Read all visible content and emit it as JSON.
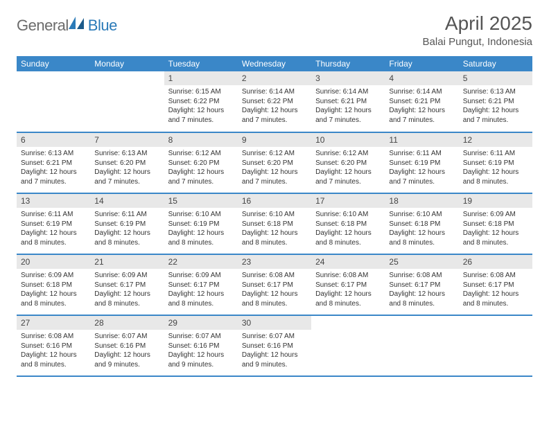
{
  "brand": {
    "text1": "General",
    "text2": "Blue"
  },
  "title": "April 2025",
  "location": "Balai Pungut, Indonesia",
  "colors": {
    "header_bg": "#3a87c8",
    "header_text": "#ffffff",
    "daynum_bg": "#e8e8e8",
    "row_border": "#3a87c8",
    "logo_gray": "#6b6b6b",
    "logo_blue": "#2a7ab8"
  },
  "weekdays": [
    "Sunday",
    "Monday",
    "Tuesday",
    "Wednesday",
    "Thursday",
    "Friday",
    "Saturday"
  ],
  "weeks": [
    [
      {
        "empty": true
      },
      {
        "empty": true
      },
      {
        "n": "1",
        "sr": "6:15 AM",
        "ss": "6:22 PM",
        "dl": "12 hours and 7 minutes."
      },
      {
        "n": "2",
        "sr": "6:14 AM",
        "ss": "6:22 PM",
        "dl": "12 hours and 7 minutes."
      },
      {
        "n": "3",
        "sr": "6:14 AM",
        "ss": "6:21 PM",
        "dl": "12 hours and 7 minutes."
      },
      {
        "n": "4",
        "sr": "6:14 AM",
        "ss": "6:21 PM",
        "dl": "12 hours and 7 minutes."
      },
      {
        "n": "5",
        "sr": "6:13 AM",
        "ss": "6:21 PM",
        "dl": "12 hours and 7 minutes."
      }
    ],
    [
      {
        "n": "6",
        "sr": "6:13 AM",
        "ss": "6:21 PM",
        "dl": "12 hours and 7 minutes."
      },
      {
        "n": "7",
        "sr": "6:13 AM",
        "ss": "6:20 PM",
        "dl": "12 hours and 7 minutes."
      },
      {
        "n": "8",
        "sr": "6:12 AM",
        "ss": "6:20 PM",
        "dl": "12 hours and 7 minutes."
      },
      {
        "n": "9",
        "sr": "6:12 AM",
        "ss": "6:20 PM",
        "dl": "12 hours and 7 minutes."
      },
      {
        "n": "10",
        "sr": "6:12 AM",
        "ss": "6:20 PM",
        "dl": "12 hours and 7 minutes."
      },
      {
        "n": "11",
        "sr": "6:11 AM",
        "ss": "6:19 PM",
        "dl": "12 hours and 7 minutes."
      },
      {
        "n": "12",
        "sr": "6:11 AM",
        "ss": "6:19 PM",
        "dl": "12 hours and 8 minutes."
      }
    ],
    [
      {
        "n": "13",
        "sr": "6:11 AM",
        "ss": "6:19 PM",
        "dl": "12 hours and 8 minutes."
      },
      {
        "n": "14",
        "sr": "6:11 AM",
        "ss": "6:19 PM",
        "dl": "12 hours and 8 minutes."
      },
      {
        "n": "15",
        "sr": "6:10 AM",
        "ss": "6:19 PM",
        "dl": "12 hours and 8 minutes."
      },
      {
        "n": "16",
        "sr": "6:10 AM",
        "ss": "6:18 PM",
        "dl": "12 hours and 8 minutes."
      },
      {
        "n": "17",
        "sr": "6:10 AM",
        "ss": "6:18 PM",
        "dl": "12 hours and 8 minutes."
      },
      {
        "n": "18",
        "sr": "6:10 AM",
        "ss": "6:18 PM",
        "dl": "12 hours and 8 minutes."
      },
      {
        "n": "19",
        "sr": "6:09 AM",
        "ss": "6:18 PM",
        "dl": "12 hours and 8 minutes."
      }
    ],
    [
      {
        "n": "20",
        "sr": "6:09 AM",
        "ss": "6:18 PM",
        "dl": "12 hours and 8 minutes."
      },
      {
        "n": "21",
        "sr": "6:09 AM",
        "ss": "6:17 PM",
        "dl": "12 hours and 8 minutes."
      },
      {
        "n": "22",
        "sr": "6:09 AM",
        "ss": "6:17 PM",
        "dl": "12 hours and 8 minutes."
      },
      {
        "n": "23",
        "sr": "6:08 AM",
        "ss": "6:17 PM",
        "dl": "12 hours and 8 minutes."
      },
      {
        "n": "24",
        "sr": "6:08 AM",
        "ss": "6:17 PM",
        "dl": "12 hours and 8 minutes."
      },
      {
        "n": "25",
        "sr": "6:08 AM",
        "ss": "6:17 PM",
        "dl": "12 hours and 8 minutes."
      },
      {
        "n": "26",
        "sr": "6:08 AM",
        "ss": "6:17 PM",
        "dl": "12 hours and 8 minutes."
      }
    ],
    [
      {
        "n": "27",
        "sr": "6:08 AM",
        "ss": "6:16 PM",
        "dl": "12 hours and 8 minutes."
      },
      {
        "n": "28",
        "sr": "6:07 AM",
        "ss": "6:16 PM",
        "dl": "12 hours and 9 minutes."
      },
      {
        "n": "29",
        "sr": "6:07 AM",
        "ss": "6:16 PM",
        "dl": "12 hours and 9 minutes."
      },
      {
        "n": "30",
        "sr": "6:07 AM",
        "ss": "6:16 PM",
        "dl": "12 hours and 9 minutes."
      },
      {
        "empty": true
      },
      {
        "empty": true
      },
      {
        "empty": true
      }
    ]
  ],
  "labels": {
    "sunrise": "Sunrise:",
    "sunset": "Sunset:",
    "daylight": "Daylight:"
  }
}
